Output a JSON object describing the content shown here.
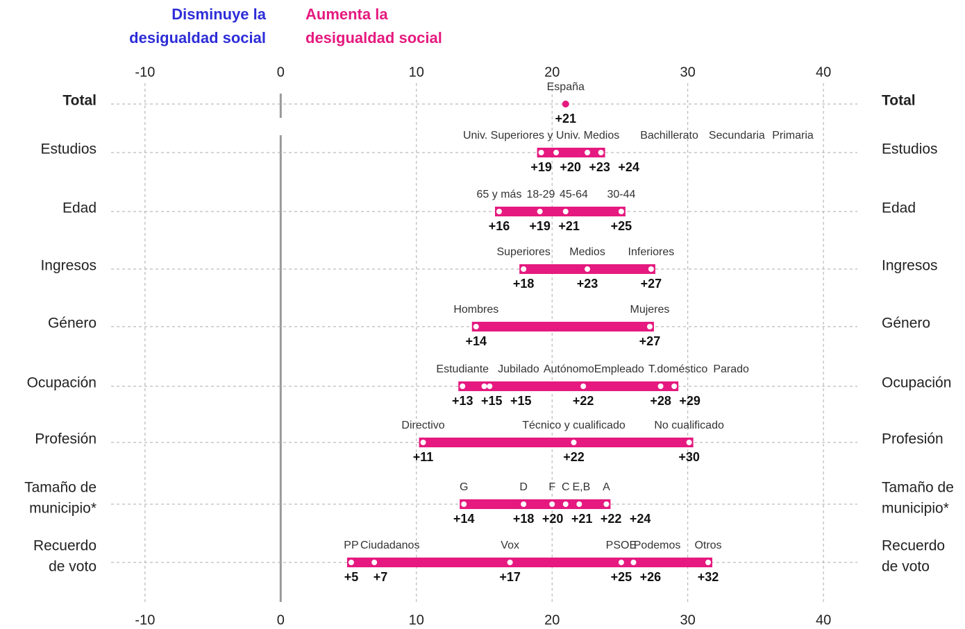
{
  "chart_data": {
    "type": "dot_range",
    "annotations": [
      {
        "lines": [
          "Disminuye la",
          "desigualdad social"
        ],
        "color": "#2d2dd8",
        "side": "left"
      },
      {
        "lines": [
          "Aumenta la",
          "desigualdad social"
        ],
        "color": "#e5197f",
        "side": "right"
      }
    ],
    "color": "#e5197f",
    "xlim": [
      -12.5,
      42.5
    ],
    "xticks": [
      -10,
      0,
      10,
      20,
      30,
      40
    ],
    "grid": true,
    "rows": [
      {
        "label": [
          "Total"
        ],
        "bold": true,
        "points": [
          {
            "name": "España",
            "value": 21,
            "value_label": "+21"
          }
        ]
      },
      {
        "label": [
          "Estudios"
        ],
        "points": [
          {
            "name": "Univ. Superiores y Univ. Medios",
            "value": 19.2,
            "value_label": "+19"
          },
          {
            "name": "Bachillerato",
            "value": 20.3,
            "value_label": "+20"
          },
          {
            "name": "Secundaria",
            "value": 22.6,
            "value_label": "+23"
          },
          {
            "name": "Primaria",
            "value": 23.6,
            "value_label": "+24"
          }
        ]
      },
      {
        "label": [
          "Edad"
        ],
        "points": [
          {
            "name": "65 y más",
            "value": 16.1,
            "value_label": "+16"
          },
          {
            "name": "18-29",
            "value": 19.1,
            "value_label": "+19"
          },
          {
            "name": "45-64",
            "value": 21,
            "value_label": "+21"
          },
          {
            "name": "30-44",
            "value": 25.1,
            "value_label": "+25"
          }
        ]
      },
      {
        "label": [
          "Ingresos"
        ],
        "points": [
          {
            "name": "Superiores",
            "value": 17.9,
            "value_label": "+18"
          },
          {
            "name": "Medios",
            "value": 22.6,
            "value_label": "+23"
          },
          {
            "name": "Inferiores",
            "value": 27.3,
            "value_label": "+27"
          }
        ]
      },
      {
        "label": [
          "Género"
        ],
        "points": [
          {
            "name": "Hombres",
            "value": 14.4,
            "value_label": "+14"
          },
          {
            "name": "Mujeres",
            "value": 27.2,
            "value_label": "+27"
          }
        ]
      },
      {
        "label": [
          "Ocupación"
        ],
        "points": [
          {
            "name": "Estudiante",
            "value": 13.4,
            "value_label": "+13"
          },
          {
            "name": "Jubilado",
            "value": 15,
            "value_label": "+15"
          },
          {
            "name": "Autónomo",
            "value": 15.4,
            "value_label": "+15"
          },
          {
            "name": "Empleado",
            "value": 22.3,
            "value_label": "+22"
          },
          {
            "name": "T.doméstico",
            "value": 28,
            "value_label": "+28"
          },
          {
            "name": "Parado",
            "value": 29,
            "value_label": "+29"
          }
        ]
      },
      {
        "label": [
          "Profesión"
        ],
        "points": [
          {
            "name": "Directivo",
            "value": 10.5,
            "value_label": "+11"
          },
          {
            "name": "Técnico y cualificado",
            "value": 21.6,
            "value_label": "+22"
          },
          {
            "name": "No cualificado",
            "value": 30.1,
            "value_label": "+30"
          }
        ]
      },
      {
        "label": [
          "Tamaño de",
          "municipio*"
        ],
        "points": [
          {
            "name": "G",
            "value": 13.5,
            "value_label": "+14"
          },
          {
            "name": "D",
            "value": 17.9,
            "value_label": "+18"
          },
          {
            "name": "F",
            "value": 20,
            "value_label": "+20"
          },
          {
            "name": "C",
            "value": 21,
            "value_label": "+21"
          },
          {
            "name": "E,B",
            "value": 22,
            "value_label": "+22"
          },
          {
            "name": "A",
            "value": 24,
            "value_label": "+24"
          }
        ]
      },
      {
        "label": [
          "Recuerdo",
          "de voto"
        ],
        "points": [
          {
            "name": "PP",
            "value": 5.2,
            "value_label": "+5"
          },
          {
            "name": "Ciudadanos",
            "value": 6.9,
            "value_label": "+7"
          },
          {
            "name": "Vox",
            "value": 16.9,
            "value_label": "+17"
          },
          {
            "name": "PSOE",
            "value": 25.1,
            "value_label": "+25"
          },
          {
            "name": "Podemos",
            "value": 26,
            "value_label": "+26"
          },
          {
            "name": "Otros",
            "value": 31.5,
            "value_label": "+32"
          }
        ]
      }
    ]
  }
}
